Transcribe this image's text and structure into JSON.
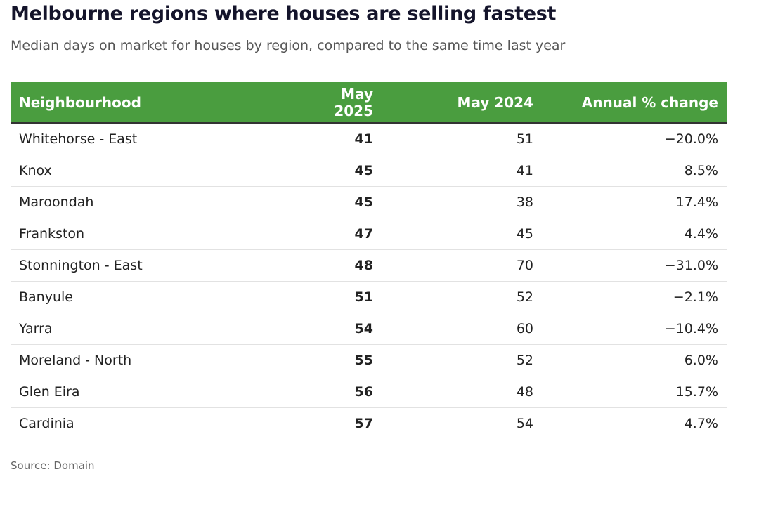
{
  "header": {
    "title": "Melbourne regions where houses are selling fastest",
    "subtitle": "Median days on market for houses by region, compared to the same time last year"
  },
  "table": {
    "columns": [
      "Neighbourhood",
      "May 2025",
      "May 2024",
      "Annual % change"
    ],
    "rows": [
      [
        "Whitehorse - East",
        "41",
        "51",
        "−20.0%"
      ],
      [
        "Knox",
        "45",
        "41",
        "8.5%"
      ],
      [
        "Maroondah",
        "45",
        "38",
        "17.4%"
      ],
      [
        "Frankston",
        "47",
        "45",
        "4.4%"
      ],
      [
        "Stonnington - East",
        "48",
        "70",
        "−31.0%"
      ],
      [
        "Banyule",
        "51",
        "52",
        "−2.1%"
      ],
      [
        "Yarra",
        "54",
        "60",
        "−10.4%"
      ],
      [
        "Moreland - North",
        "55",
        "52",
        "6.0%"
      ],
      [
        "Glen Eira",
        "56",
        "48",
        "15.7%"
      ],
      [
        "Cardinia",
        "57",
        "54",
        "4.7%"
      ]
    ]
  },
  "footer": {
    "source": "Source: Domain"
  }
}
